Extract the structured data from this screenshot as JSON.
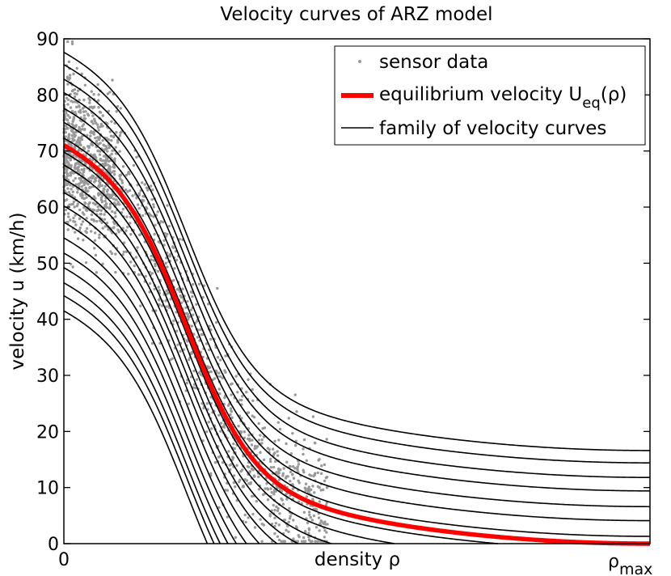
{
  "chart_data": {
    "type": "line",
    "title": "Velocity curves of ARZ model",
    "xlabel": "density ρ",
    "ylabel": "velocity u (km/h)",
    "xlim": [
      0,
      1
    ],
    "ylim": [
      0,
      90
    ],
    "x_tick_labels": [
      {
        "x": 0,
        "label": "0"
      },
      {
        "x": 1,
        "label": "ρ",
        "subscript": "max"
      }
    ],
    "y_ticks": [
      0,
      10,
      20,
      30,
      40,
      50,
      60,
      70,
      80,
      90
    ],
    "legend": {
      "position": "top-right",
      "entries": [
        {
          "label": "sensor data",
          "marker": "dot",
          "color": "#999999"
        },
        {
          "label": "equilibrium velocity U",
          "subscript": "eq",
          "suffix": "(ρ)",
          "marker": "line",
          "color": "#ff0000"
        },
        {
          "label": "family of velocity curves",
          "marker": "line",
          "color": "#000000"
        }
      ]
    },
    "equilibrium": {
      "name": "equilibrium velocity U_eq(ρ)",
      "color": "#ff0000",
      "u0": 71.0
    },
    "family": {
      "name": "family of velocity curves",
      "color": "#000000",
      "start_values": [
        41.5,
        44.2,
        46.5,
        49.2,
        51.8,
        54.5,
        57.3,
        60.2,
        62.6,
        65.0,
        67.5,
        69.8,
        72.3,
        75.1,
        77.6,
        80.4,
        82.8,
        85.4,
        87.6
      ]
    },
    "sensor_data": {
      "name": "sensor data",
      "color": "#999999",
      "count": 1800,
      "density_range": [
        0,
        0.45
      ]
    }
  }
}
